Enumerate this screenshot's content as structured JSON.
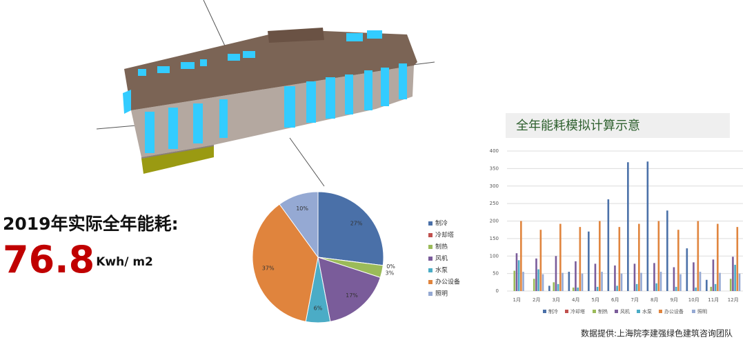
{
  "headline": "2019年实际全年能耗:",
  "metric": {
    "value": 76.8,
    "unit": "Kwh/ m2"
  },
  "source": "数据提供:上海院李建强绿色建筑咨询团队",
  "chart_data": [
    {
      "type": "pie",
      "categories": [
        "制冷",
        "冷却塔",
        "制热",
        "风机",
        "水泵",
        "办公设备",
        "照明"
      ],
      "values": [
        27,
        0,
        3,
        17,
        6,
        37,
        10
      ],
      "value_labels": [
        "27%",
        "0%",
        "3%",
        "17%",
        "6%",
        "37%",
        "10%"
      ],
      "colors": [
        "#4a70a8",
        "#c0504d",
        "#9bbb59",
        "#7a5c9a",
        "#4bacc6",
        "#e0843d",
        "#95a9d3"
      ]
    },
    {
      "type": "bar",
      "title": "全年能耗模拟计算示意",
      "categories": [
        "1月",
        "2月",
        "3月",
        "4月",
        "5月",
        "6月",
        "7月",
        "8月",
        "9月",
        "10月",
        "11月",
        "12月"
      ],
      "series": [
        {
          "name": "制冷",
          "color": "#4a70a8",
          "values": [
            0,
            0,
            15,
            55,
            170,
            262,
            368,
            370,
            230,
            122,
            32,
            0
          ]
        },
        {
          "name": "冷却塔",
          "color": "#c0504d",
          "values": [
            0,
            0,
            0,
            0,
            0,
            0,
            0,
            0,
            0,
            0,
            0,
            0
          ]
        },
        {
          "name": "制热",
          "color": "#9bbb59",
          "values": [
            58,
            35,
            25,
            10,
            0,
            0,
            0,
            0,
            0,
            0,
            12,
            35
          ]
        },
        {
          "name": "风机",
          "color": "#7a5c9a",
          "values": [
            108,
            93,
            100,
            85,
            78,
            73,
            78,
            80,
            68,
            82,
            90,
            98
          ]
        },
        {
          "name": "水泵",
          "color": "#4bacc6",
          "values": [
            88,
            62,
            20,
            10,
            12,
            15,
            20,
            22,
            12,
            10,
            20,
            75
          ]
        },
        {
          "name": "办公设备",
          "color": "#e0843d",
          "values": [
            200,
            175,
            192,
            183,
            200,
            183,
            192,
            200,
            175,
            200,
            192,
            183
          ]
        },
        {
          "name": "照明",
          "color": "#95a9d3",
          "values": [
            55,
            48,
            52,
            50,
            55,
            50,
            52,
            55,
            48,
            55,
            52,
            50
          ]
        }
      ],
      "ylim": [
        0,
        400
      ],
      "yticks": [
        0,
        50,
        100,
        150,
        200,
        250,
        300,
        350,
        400
      ],
      "grid": true,
      "legend": "bottom"
    }
  ]
}
